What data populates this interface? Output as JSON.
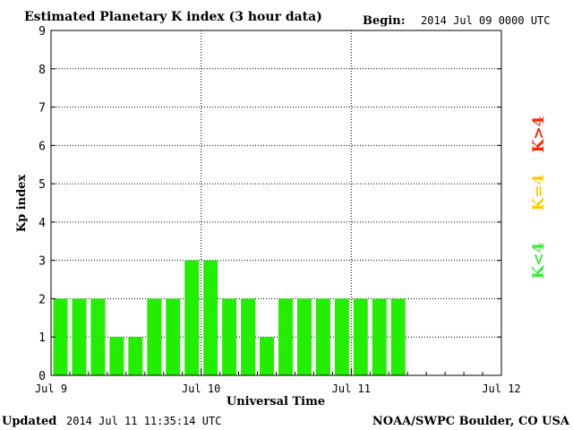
{
  "header": {
    "title": "Estimated Planetary K index (3 hour data)",
    "begin_label": "Begin:",
    "begin_value": "2014 Jul 09 0000 UTC"
  },
  "footer": {
    "updated_label": "Updated",
    "updated_value": "2014 Jul 11 11:35:14 UTC",
    "source": "NOAA/SWPC Boulder, CO USA"
  },
  "legend": {
    "low": {
      "label": "K<4",
      "color": "#33ee33"
    },
    "mid": {
      "label": "K=4",
      "color": "#ffcc00"
    },
    "high": {
      "label": "K>4",
      "color": "#ff2200"
    }
  },
  "chart_data": {
    "type": "bar",
    "title": "Estimated Planetary K index (3 hour data)",
    "xlabel": "Universal Time",
    "ylabel": "Kp index",
    "ylim": [
      0,
      9
    ],
    "yticks": [
      "0",
      "1",
      "2",
      "3",
      "4",
      "5",
      "6",
      "7",
      "8",
      "9"
    ],
    "xticks": [
      "Jul 9",
      "Jul 10",
      "Jul 11",
      "Jul 12"
    ],
    "slots_per_day": 8,
    "days": 3,
    "grid": true,
    "bar_color": "#22ee00",
    "values": [
      2,
      2,
      2,
      1,
      1,
      2,
      2,
      3,
      3,
      2,
      2,
      1,
      2,
      2,
      2,
      2,
      2,
      2,
      2
    ]
  }
}
